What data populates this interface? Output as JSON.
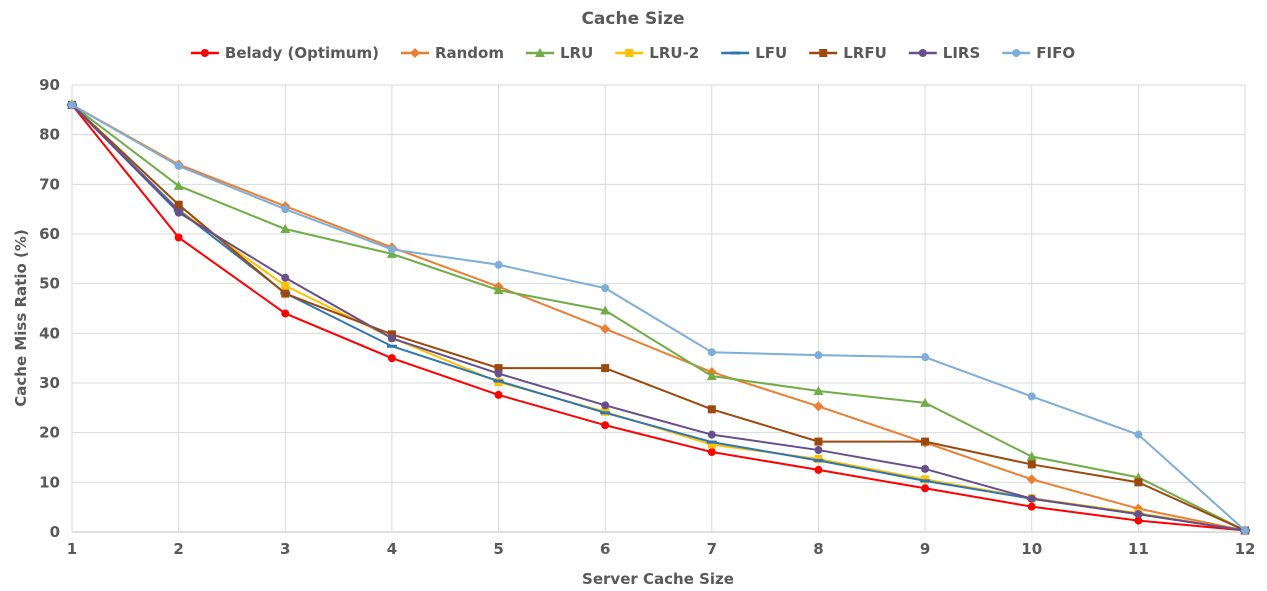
{
  "chart_data": {
    "type": "line",
    "title": "Cache Size",
    "xlabel": "Server Cache Size",
    "ylabel": "Cache Miss Ratio (%)",
    "x": [
      1,
      2,
      3,
      4,
      5,
      6,
      7,
      8,
      9,
      10,
      11,
      12
    ],
    "xlim": [
      1,
      12
    ],
    "ylim": [
      0,
      90
    ],
    "yticks": [
      0,
      10,
      20,
      30,
      40,
      50,
      60,
      70,
      80,
      90
    ],
    "grid": true,
    "legend_position": "top",
    "series": [
      {
        "name": "Belady (Optimum)",
        "color": "#ff0000",
        "marker": "circle",
        "values": [
          86,
          59.3,
          44,
          35,
          27.6,
          21.5,
          16.1,
          12.5,
          8.8,
          5.1,
          2.3,
          0.3
        ]
      },
      {
        "name": "Random",
        "color": "#ed7d31",
        "marker": "diamond",
        "values": [
          86,
          74,
          65.6,
          57.3,
          49.4,
          40.9,
          32.2,
          25.3,
          18,
          10.6,
          4.7,
          0.3
        ]
      },
      {
        "name": "LRU",
        "color": "#70ad47",
        "marker": "triangle",
        "values": [
          86,
          69.7,
          61,
          56,
          48.7,
          44.6,
          31.4,
          28.4,
          26,
          15.2,
          11,
          0.3
        ]
      },
      {
        "name": "LRU-2",
        "color": "#ffc000",
        "marker": "square",
        "values": [
          86,
          64.9,
          49.6,
          39.1,
          30.2,
          24.2,
          17.6,
          14.7,
          10.6,
          6.8,
          3.8,
          0.3
        ]
      },
      {
        "name": "LFU",
        "color": "#2e75b6",
        "marker": "dash",
        "values": [
          86,
          64.8,
          48.1,
          37.4,
          30.4,
          24,
          18.1,
          14.4,
          10.3,
          6.7,
          3.6,
          0.3
        ]
      },
      {
        "name": "LRFU",
        "color": "#9e480e",
        "marker": "square",
        "values": [
          86,
          65.9,
          48,
          39.8,
          33,
          33,
          24.7,
          18.2,
          18.2,
          13.6,
          10,
          0.3
        ]
      },
      {
        "name": "LIRS",
        "color": "#674f8e",
        "marker": "circle",
        "values": [
          86,
          64.3,
          51.2,
          39,
          31.9,
          25.5,
          19.6,
          16.5,
          12.7,
          6.7,
          3.6,
          0.3
        ]
      },
      {
        "name": "FIFO",
        "color": "#7dadd9",
        "marker": "circle",
        "values": [
          86,
          73.7,
          65,
          56.9,
          53.8,
          49.1,
          36.2,
          35.6,
          35.2,
          27.3,
          19.6,
          0.3
        ]
      }
    ]
  }
}
